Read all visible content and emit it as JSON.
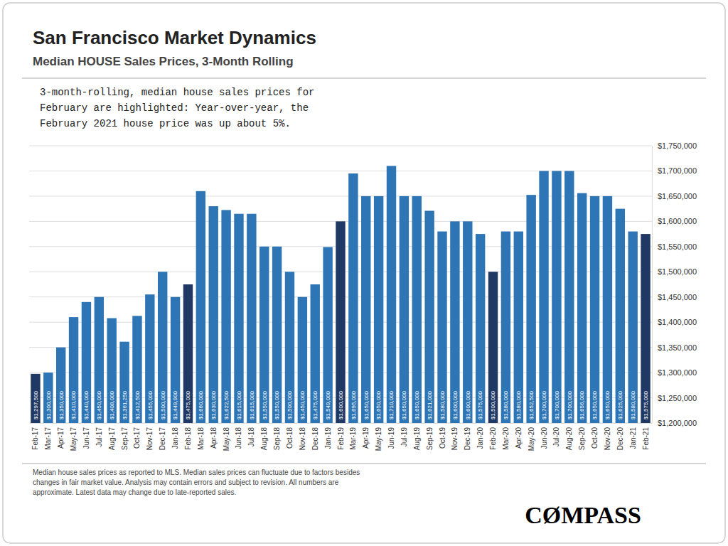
{
  "chart_data": {
    "type": "bar",
    "title": "San Francisco Market Dynamics",
    "subtitle": "Median HOUSE Sales Prices, 3-Month Rolling",
    "annotations": [
      "3-month-rolling, median house sales prices for\nFebruary are highlighted: Year-over-year, the\nFebruary 2021 house price was up about 5%.",
      "Median house sales prices as reported to MLS. Median sales prices can fluctuate due to factors besides\nchanges in fair market value. Analysis may contain errors and subject to revision. All numbers are\napproximate. Latest data may change due to late-reported sales.",
      "CØMPASS"
    ],
    "categories": [
      "Feb-17",
      "Mar-17",
      "Apr-17",
      "May-17",
      "Jun-17",
      "Jul-17",
      "Aug-17",
      "Sep-17",
      "Oct-17",
      "Nov-17",
      "Dec-17",
      "Jan-18",
      "Feb-18",
      "Mar-18",
      "Apr-18",
      "May-18",
      "Jun-18",
      "Jul-18",
      "Aug-18",
      "Sep-18",
      "Oct-18",
      "Nov-18",
      "Dec-18",
      "Jan-19",
      "Feb-19",
      "Mar-19",
      "Apr-19",
      "May-19",
      "Jun-19",
      "Jul-19",
      "Aug-19",
      "Sep-19",
      "Oct-19",
      "Nov-19",
      "Dec-19",
      "Jan-20",
      "Feb-20",
      "Mar-20",
      "Apr-20",
      "May-20",
      "Jun-20",
      "Jul-20",
      "Aug-20",
      "Sep-20",
      "Oct-20",
      "Nov-20",
      "Dec-20",
      "Jan-21",
      "Feb-21"
    ],
    "values": [
      1297500,
      1300000,
      1350000,
      1410000,
      1440000,
      1450000,
      1408000,
      1361250,
      1412500,
      1455000,
      1500000,
      1449900,
      1475000,
      1660000,
      1630000,
      1622500,
      1615000,
      1615000,
      1550000,
      1550000,
      1500000,
      1450000,
      1475000,
      1549000,
      1600000,
      1695000,
      1650000,
      1650000,
      1710000,
      1650000,
      1650000,
      1621000,
      1580000,
      1600000,
      1600000,
      1575000,
      1500000,
      1580000,
      1580000,
      1652500,
      1700000,
      1700000,
      1700000,
      1656000,
      1650000,
      1650000,
      1625000,
      1580000,
      1575000
    ],
    "value_labels": [
      "$1,297,500",
      "$1,300,000",
      "$1,350,000",
      "$1,410,000",
      "$1,440,000",
      "$1,450,000",
      "$1,408,000",
      "$1,361,250",
      "$1,412,500",
      "$1,455,000",
      "$1,500,000",
      "$1,449,900",
      "$1,475,000",
      "$1,660,000",
      "$1,630,000",
      "$1,622,500",
      "$1,615,000",
      "$1,615,000",
      "$1,550,000",
      "$1,550,000",
      "$1,500,000",
      "$1,450,000",
      "$1,475,000",
      "$1,549,000",
      "$1,600,000",
      "$1,695,000",
      "$1,650,000",
      "$1,650,000",
      "$1,710,000",
      "$1,650,000",
      "$1,650,000",
      "$1,621,000",
      "$1,580,000",
      "$1,600,000",
      "$1,600,000",
      "$1,575,000",
      "$1,500,000",
      "$1,580,000",
      "$1,580,000",
      "$1,652,500",
      "$1,700,000",
      "$1,700,000",
      "$1,700,000",
      "$1,656,000",
      "$1,650,000",
      "$1,650,000",
      "$1,625,000",
      "$1,580,000",
      "$1,575,000"
    ],
    "colors": [
      "#1F3864",
      "#2E75B6",
      "#2E75B6",
      "#2E75B6",
      "#2E75B6",
      "#2E75B6",
      "#2E75B6",
      "#2E75B6",
      "#2E75B6",
      "#2E75B6",
      "#2E75B6",
      "#2E75B6",
      "#1F3864",
      "#2E75B6",
      "#2E75B6",
      "#2E75B6",
      "#2E75B6",
      "#2E75B6",
      "#2E75B6",
      "#2E75B6",
      "#2E75B6",
      "#2E75B6",
      "#2E75B6",
      "#2E75B6",
      "#1F3864",
      "#2E75B6",
      "#2E75B6",
      "#2E75B6",
      "#2E75B6",
      "#2E75B6",
      "#2E75B6",
      "#2E75B6",
      "#2E75B6",
      "#2E75B6",
      "#2E75B6",
      "#2E75B6",
      "#1F3864",
      "#2E75B6",
      "#2E75B6",
      "#2E75B6",
      "#2E75B6",
      "#2E75B6",
      "#2E75B6",
      "#2E75B6",
      "#2E75B6",
      "#2E75B6",
      "#2E75B6",
      "#2E75B6",
      "#1F3864"
    ],
    "ylim": [
      1200000,
      1750000
    ],
    "yticks": [
      {
        "value": 1200000,
        "label": "$1,200,000"
      },
      {
        "value": 1250000,
        "label": "$1,250,000"
      },
      {
        "value": 1300000,
        "label": "$1,300,000"
      },
      {
        "value": 1350000,
        "label": "$1,350,000"
      },
      {
        "value": 1400000,
        "label": "$1,400,000"
      },
      {
        "value": 1450000,
        "label": "$1,450,000"
      },
      {
        "value": 1500000,
        "label": "$1,500,000"
      },
      {
        "value": 1550000,
        "label": "$1,550,000"
      },
      {
        "value": 1600000,
        "label": "$1,600,000"
      },
      {
        "value": 1650000,
        "label": "$1,650,000"
      },
      {
        "value": 1700000,
        "label": "$1,700,000"
      },
      {
        "value": 1750000,
        "label": "$1,750,000"
      }
    ],
    "grid": true,
    "data_labels": true
  }
}
